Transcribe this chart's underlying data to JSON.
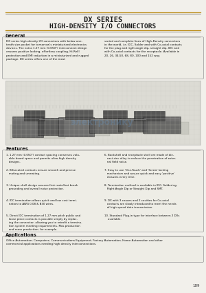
{
  "page_bg": "#f2f0eb",
  "title_line1": "DX SERIES",
  "title_line2": "HIGH-DENSITY I/O CONNECTORS",
  "title_color": "#1a1a1a",
  "section_general": "General",
  "section_features": "Features",
  "section_applications": "Applications",
  "page_number": "189",
  "accent_color": "#b8860b",
  "line_color": "#555555",
  "box_bg": "#eeede6",
  "box_edge": "#999999",
  "general_text_col1": "DX series high-density I/O connectors with below one-tenth size pocket for tomorrow's miniaturized electronics devices. The extra 1.27 mm (0.050\") interconnect design ensures positive locking, effortless coupling, Hi-ReliI protection and EMI reduction in a miniaturized and rugged package. DX series offers one of the most",
  "general_text_col2": "varied and complete lines of High-Density connectors in the world, i.e. IDC, Solder and with Co-axial contacts for the plug and right angle dip, straight dip, IDC and with Co-axial contacts for the receptacle. Available in 20, 26, 34,50, 68, 80, 100 and 152 way.",
  "feat_col1": [
    "1. 1.27 mm (0.050\") contact spacing conserves valu-\n   able board space and permits ultra-high density\n   designs.",
    "2. Bifurcated contacts ensure smooth and precise\n   mating and unmating.",
    "3. Unique shell design assures first mate/last break\n   grounding and overall noise protection.",
    "4. IDC termination allows quick and low cost termi-\n   nation to AWG 0.08 & B30 wires.",
    "5. Direct IDC termination of 1.27 mm pitch public and\n   loose piece contacts is possible simply by replac-\n   ing the connector, allowing you to retrofit a termina-\n   tion system meeting requirements. Mas production\n   and mass production, for example."
  ],
  "feat_col2": [
    "6. Backshell and receptacle shell are made of die-\n   cast zinc alloy to reduce the penetration of exter-\n   nal field noise.",
    "7. Easy to use 'One-Touch' and 'Screw' locking\n   mechanism and assure quick and easy 'positive'\n   closures every time.",
    "8. Termination method is available in IDC, Soldering,\n   Right Angle Dip or Straight Dip and SMT.",
    "9. DX with 3 coaxes and 2 cavities for Co-axial\n   contacts are slowly introduced to meet the needs\n   of high speed data transmission.",
    "10. Standard Plug-in type for interface between 2 DXs\n    available."
  ],
  "app_text": "Office Automation, Computers, Communications Equipment, Factory Automation, Home Automation and other\ncommercial applications needing high density interconnections."
}
